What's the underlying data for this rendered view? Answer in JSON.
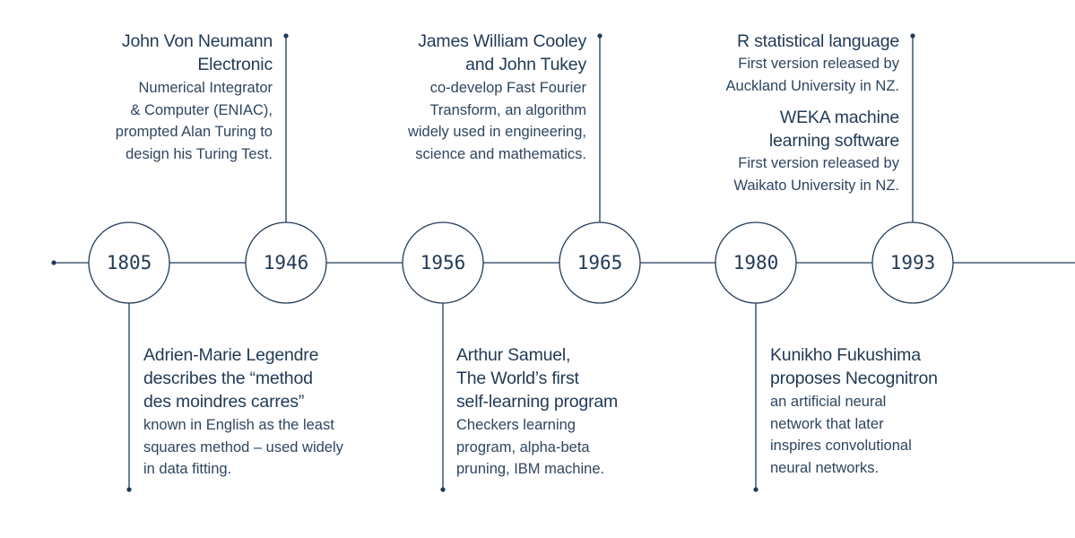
{
  "timeline": {
    "nodes": [
      {
        "year": "1805"
      },
      {
        "year": "1946"
      },
      {
        "year": "1956"
      },
      {
        "year": "1965"
      },
      {
        "year": "1980"
      },
      {
        "year": "1993"
      }
    ]
  },
  "events": {
    "e1946": {
      "title_lines": [
        "John Von Neumann",
        "Electronic"
      ],
      "body_lines": [
        "Numerical Integrator",
        "& Computer (ENIAC),",
        "prompted Alan Turing to",
        "design his Turing Test."
      ]
    },
    "e1965": {
      "title_lines": [
        "James William Cooley",
        "and John Tukey"
      ],
      "body_lines": [
        "co-develop Fast Fourier",
        "Transform, an algorithm",
        "widely used in engineering,",
        "science and mathematics."
      ]
    },
    "e1993a": {
      "title_lines": [
        "R statistical language"
      ],
      "body_lines": [
        "First version released by",
        "Auckland University in NZ."
      ]
    },
    "e1993b": {
      "title_lines": [
        "WEKA machine",
        "learning software"
      ],
      "body_lines": [
        "First version released by",
        "Waikato University in NZ."
      ]
    },
    "e1805": {
      "title_lines": [
        "Adrien-Marie Legendre",
        "describes the “method",
        "des moindres carres”"
      ],
      "body_lines": [
        "known in English as the least",
        "squares method – used widely",
        "in data fitting."
      ]
    },
    "e1956": {
      "title_lines": [
        "Arthur Samuel,",
        "The World’s first",
        "self-learning program"
      ],
      "body_lines": [
        "Checkers learning",
        "program, alpha-beta",
        "pruning, IBM machine."
      ]
    },
    "e1980": {
      "title_lines": [
        "Kunikho Fukushima",
        "proposes Necognitron"
      ],
      "body_lines": [
        "an artificial neural",
        "network that later",
        "inspires convolutional",
        "neural networks."
      ]
    }
  }
}
